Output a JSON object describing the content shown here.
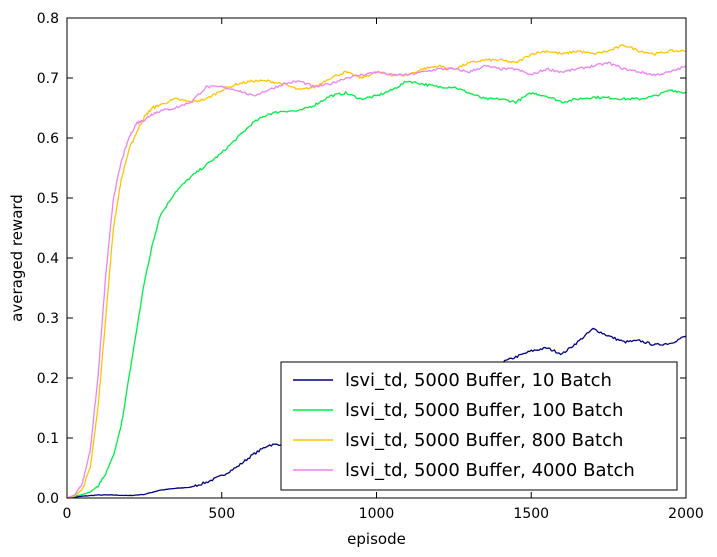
{
  "chart_data": {
    "type": "line",
    "title": "",
    "xlabel": "episode",
    "ylabel": "averaged reward",
    "xlim": [
      0,
      2000
    ],
    "ylim": [
      0,
      0.8
    ],
    "xticks": [
      0,
      500,
      1000,
      1500,
      2000
    ],
    "xtick_labels": [
      "0",
      "500",
      "1000",
      "1500",
      "2000"
    ],
    "yticks": [
      0.0,
      0.1,
      0.2,
      0.3,
      0.4,
      0.5,
      0.6,
      0.7,
      0.8
    ],
    "ytick_labels": [
      "0.0",
      "0.1",
      "0.2",
      "0.3",
      "0.4",
      "0.5",
      "0.6",
      "0.7",
      "0.8"
    ],
    "grid": false,
    "legend_position": "lower-right",
    "series": [
      {
        "name": "lsvi_td, 5000 Buffer, 10 Batch",
        "color": "#000080",
        "x": [
          0,
          50,
          100,
          150,
          200,
          250,
          300,
          350,
          400,
          450,
          500,
          550,
          600,
          650,
          700,
          750,
          800,
          850,
          900,
          950,
          1000,
          1050,
          1100,
          1150,
          1200,
          1250,
          1300,
          1350,
          1400,
          1450,
          1500,
          1550,
          1600,
          1650,
          1700,
          1750,
          1800,
          1850,
          1900,
          1950,
          2000
        ],
        "y": [
          0.0,
          0.003,
          0.005,
          0.005,
          0.004,
          0.006,
          0.013,
          0.016,
          0.018,
          0.026,
          0.037,
          0.052,
          0.072,
          0.088,
          0.09,
          0.085,
          0.1,
          0.11,
          0.115,
          0.118,
          0.12,
          0.13,
          0.135,
          0.145,
          0.16,
          0.18,
          0.2,
          0.215,
          0.225,
          0.235,
          0.245,
          0.25,
          0.24,
          0.26,
          0.282,
          0.27,
          0.26,
          0.262,
          0.255,
          0.258,
          0.27
        ]
      },
      {
        "name": "lsvi_td, 5000 Buffer, 100 Batch",
        "color": "#00ee44",
        "x": [
          0,
          25,
          50,
          75,
          100,
          125,
          150,
          175,
          200,
          225,
          250,
          275,
          300,
          350,
          400,
          450,
          500,
          550,
          600,
          650,
          700,
          750,
          800,
          850,
          900,
          950,
          1000,
          1050,
          1100,
          1150,
          1200,
          1250,
          1300,
          1350,
          1400,
          1450,
          1500,
          1550,
          1600,
          1650,
          1700,
          1750,
          1800,
          1850,
          1900,
          1950,
          2000
        ],
        "y": [
          0.0,
          0.003,
          0.006,
          0.01,
          0.02,
          0.04,
          0.07,
          0.12,
          0.2,
          0.28,
          0.36,
          0.42,
          0.47,
          0.51,
          0.535,
          0.555,
          0.575,
          0.6,
          0.625,
          0.64,
          0.645,
          0.645,
          0.655,
          0.67,
          0.675,
          0.665,
          0.67,
          0.68,
          0.695,
          0.69,
          0.685,
          0.685,
          0.675,
          0.665,
          0.665,
          0.66,
          0.675,
          0.67,
          0.66,
          0.665,
          0.668,
          0.667,
          0.665,
          0.665,
          0.67,
          0.68,
          0.675
        ]
      },
      {
        "name": "lsvi_td, 5000 Buffer, 800 Batch",
        "color": "#ffc400",
        "x": [
          0,
          25,
          50,
          75,
          100,
          125,
          150,
          175,
          200,
          225,
          250,
          275,
          300,
          350,
          400,
          450,
          500,
          550,
          600,
          650,
          700,
          750,
          800,
          850,
          900,
          950,
          1000,
          1050,
          1100,
          1150,
          1200,
          1250,
          1300,
          1350,
          1400,
          1450,
          1500,
          1550,
          1600,
          1650,
          1700,
          1750,
          1800,
          1850,
          1900,
          1950,
          2000
        ],
        "y": [
          0.0,
          0.003,
          0.015,
          0.05,
          0.15,
          0.3,
          0.45,
          0.53,
          0.58,
          0.61,
          0.635,
          0.65,
          0.655,
          0.665,
          0.66,
          0.665,
          0.68,
          0.69,
          0.695,
          0.695,
          0.69,
          0.68,
          0.685,
          0.7,
          0.71,
          0.7,
          0.71,
          0.705,
          0.705,
          0.715,
          0.72,
          0.715,
          0.725,
          0.73,
          0.73,
          0.725,
          0.74,
          0.745,
          0.74,
          0.745,
          0.74,
          0.745,
          0.755,
          0.745,
          0.74,
          0.745,
          0.745
        ]
      },
      {
        "name": "lsvi_td, 5000 Buffer, 4000 Batch",
        "color": "#ee82ee",
        "x": [
          0,
          25,
          50,
          75,
          100,
          125,
          150,
          175,
          200,
          225,
          250,
          275,
          300,
          350,
          400,
          450,
          500,
          550,
          600,
          650,
          700,
          750,
          800,
          850,
          900,
          950,
          1000,
          1050,
          1100,
          1150,
          1200,
          1250,
          1300,
          1350,
          1400,
          1450,
          1500,
          1550,
          1600,
          1650,
          1700,
          1750,
          1800,
          1850,
          1900,
          1950,
          2000
        ],
        "y": [
          0.0,
          0.005,
          0.025,
          0.08,
          0.2,
          0.37,
          0.5,
          0.56,
          0.6,
          0.625,
          0.63,
          0.64,
          0.645,
          0.65,
          0.66,
          0.685,
          0.685,
          0.68,
          0.67,
          0.68,
          0.69,
          0.695,
          0.685,
          0.69,
          0.7,
          0.705,
          0.71,
          0.705,
          0.705,
          0.71,
          0.715,
          0.715,
          0.71,
          0.72,
          0.715,
          0.715,
          0.705,
          0.715,
          0.71,
          0.715,
          0.72,
          0.725,
          0.715,
          0.71,
          0.705,
          0.71,
          0.72
        ]
      }
    ]
  }
}
